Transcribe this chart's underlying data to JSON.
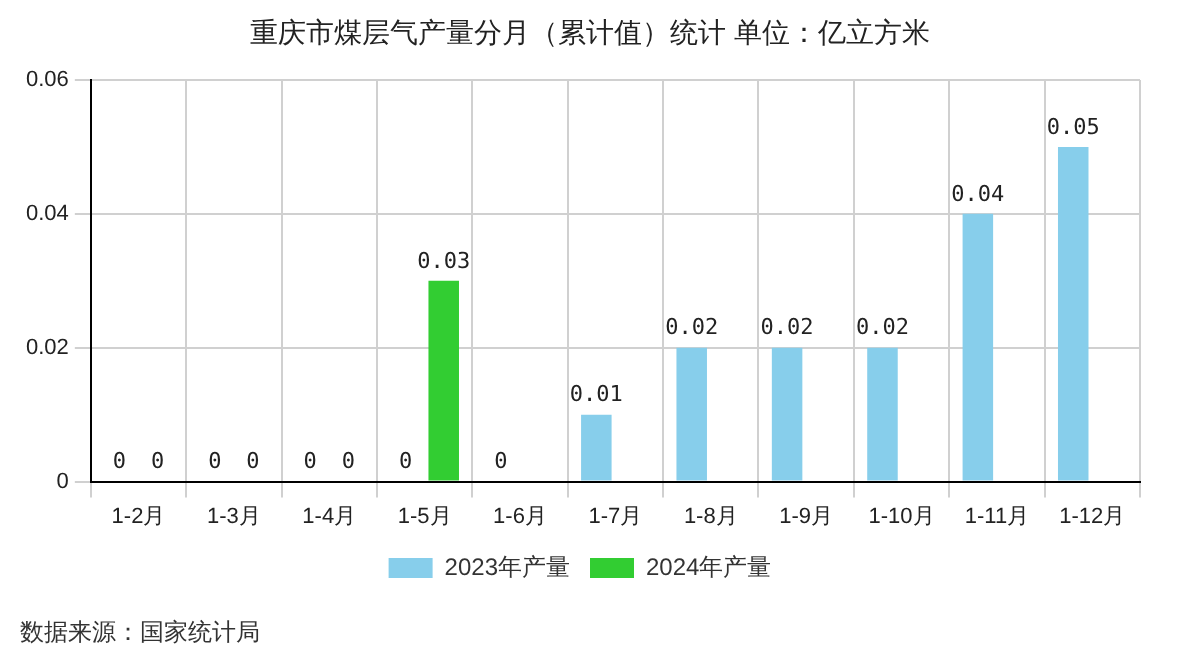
{
  "chart_data": {
    "type": "bar",
    "title": "重庆市煤层气产量分月（累计值）统计 单位：亿立方米",
    "categories": [
      "1-2月",
      "1-3月",
      "1-4月",
      "1-5月",
      "1-6月",
      "1-7月",
      "1-8月",
      "1-9月",
      "1-10月",
      "1-11月",
      "1-12月"
    ],
    "series": [
      {
        "name": "2023年产量",
        "color": "#87ceeb",
        "values": [
          0,
          0,
          0,
          0,
          0,
          0.01,
          0.02,
          0.02,
          0.02,
          0.04,
          0.05
        ]
      },
      {
        "name": "2024年产量",
        "color": "#32cd32",
        "values": [
          0,
          0,
          0,
          0.03,
          null,
          null,
          null,
          null,
          null,
          null,
          null
        ]
      }
    ],
    "ylim": [
      0,
      0.06
    ],
    "yticks": [
      0,
      0.02,
      0.04,
      0.06
    ],
    "grid": true,
    "legend": "bottom",
    "data_labels": true,
    "annotations": [
      "数据来源：国家统计局"
    ]
  }
}
